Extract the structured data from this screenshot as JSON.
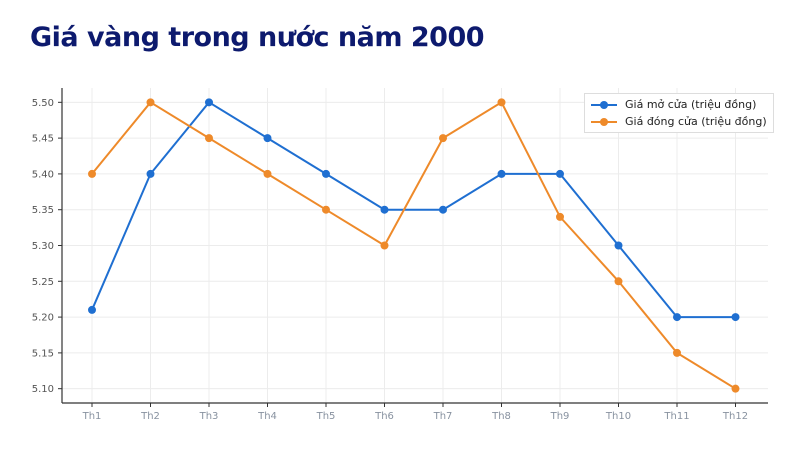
{
  "chart_data": {
    "type": "line",
    "title": "Giá vàng trong nước năm 2000",
    "xlabel": "",
    "ylabel": "",
    "categories": [
      "Th1",
      "Th2",
      "Th3",
      "Th4",
      "Th5",
      "Th6",
      "Th7",
      "Th8",
      "Th9",
      "Th10",
      "Th11",
      "Th12"
    ],
    "yticks": [
      "5.10",
      "5.15",
      "5.20",
      "5.25",
      "5.30",
      "5.35",
      "5.40",
      "5.45",
      "5.50"
    ],
    "ylim": [
      5.08,
      5.52
    ],
    "grid": true,
    "legend_position": "top-right",
    "series": [
      {
        "name": "Giá mở cửa (triệu đồng)",
        "color": "#1f6fd1",
        "values": [
          5.21,
          5.4,
          5.5,
          5.45,
          5.4,
          5.35,
          5.35,
          5.4,
          5.4,
          5.3,
          5.2,
          5.2
        ]
      },
      {
        "name": "Giá đóng cửa (triệu đồng)",
        "color": "#ee8a2a",
        "values": [
          5.4,
          5.5,
          5.45,
          5.4,
          5.35,
          5.3,
          5.45,
          5.5,
          5.34,
          5.25,
          5.15,
          5.1
        ]
      }
    ]
  }
}
